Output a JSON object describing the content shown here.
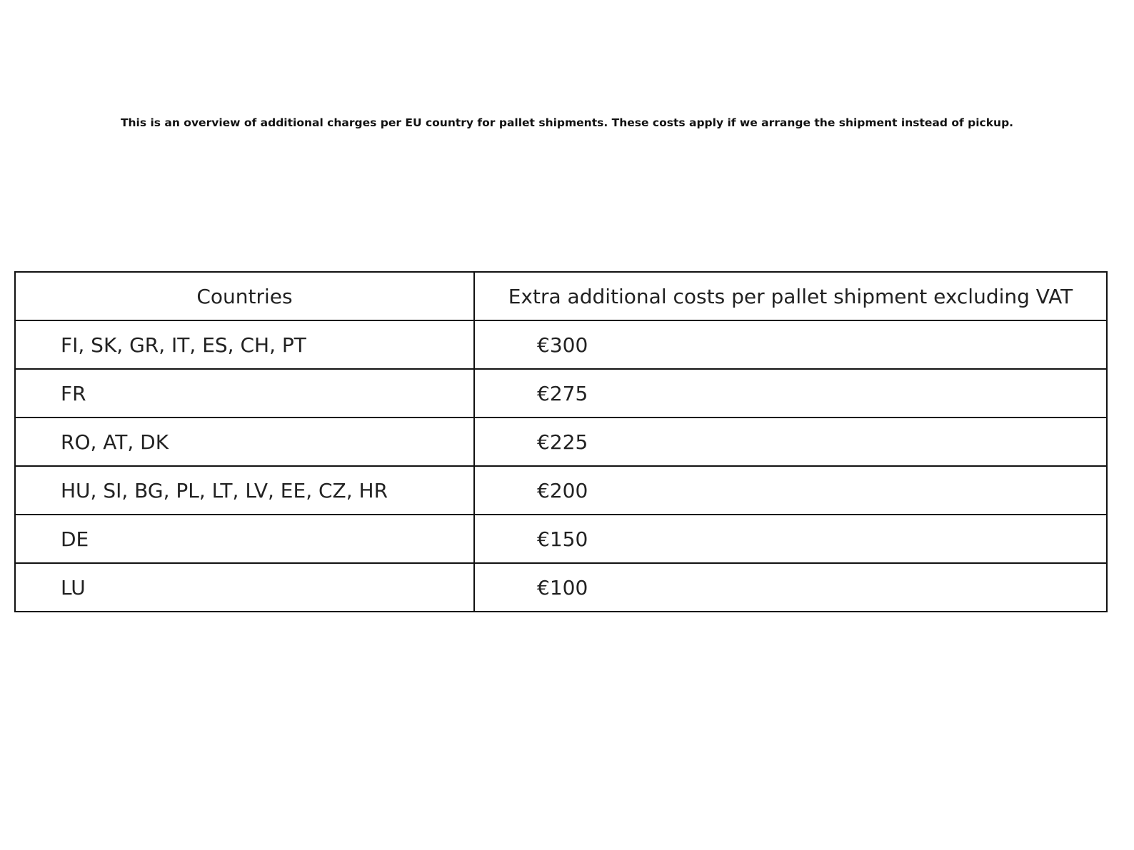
{
  "intro": "This is an overview of additional charges per EU country for pallet shipments. These costs apply if we arrange the shipment instead of pickup.",
  "table": {
    "headers": [
      "Countries",
      "Extra additional costs per pallet shipment excluding VAT"
    ],
    "rows": [
      {
        "countries": "FI, SK, GR, IT, ES, CH, PT",
        "cost": "€300"
      },
      {
        "countries": "FR",
        "cost": "€275"
      },
      {
        "countries": "RO, AT, DK",
        "cost": "€225"
      },
      {
        "countries": "HU, SI, BG, PL, LT, LV, EE, CZ, HR",
        "cost": "€200"
      },
      {
        "countries": "DE",
        "cost": "€150"
      },
      {
        "countries": "LU",
        "cost": "€100"
      }
    ]
  }
}
